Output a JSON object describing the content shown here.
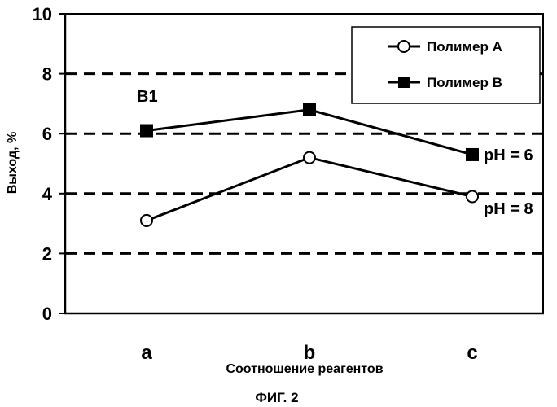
{
  "chart_data": {
    "type": "line",
    "title": "",
    "xlabel": "Соотношение реагентов",
    "ylabel": "Выход, %",
    "categories": [
      "a",
      "b",
      "c"
    ],
    "ylim": [
      0,
      10
    ],
    "yticks": [
      "0",
      "2",
      "4",
      "6",
      "8",
      "10"
    ],
    "grid": "dashed horizontal at 2, 4, 6, 8",
    "legend_position": "top-right",
    "series": [
      {
        "name": "Полимер A",
        "values": [
          3.1,
          5.2,
          3.9
        ],
        "marker": "open-circle",
        "end_label": "pH = 8"
      },
      {
        "name": "Полимер B",
        "values": [
          6.1,
          6.8,
          5.3
        ],
        "marker": "filled-square",
        "end_label": "pH = 6"
      }
    ],
    "annotations": [
      "B1"
    ]
  },
  "figure_caption": "ФИГ. 2",
  "colors": {
    "line": "#000000",
    "background": "#ffffff"
  }
}
